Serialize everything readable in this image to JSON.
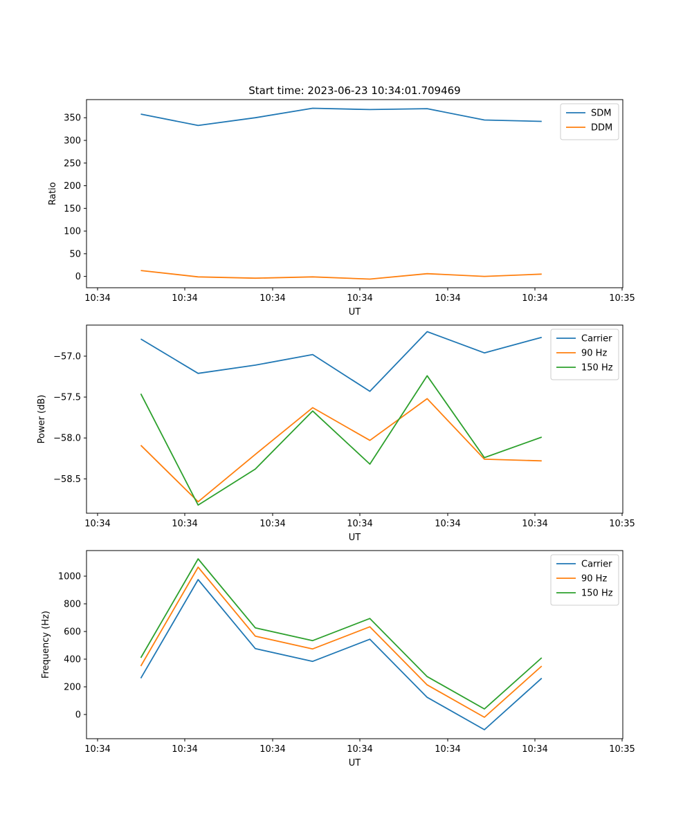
{
  "figure": {
    "title": "Start time: 2023-06-23 10:34:01.709469"
  },
  "chart_data": [
    {
      "type": "line",
      "title": "Start time: 2023-06-23 10:34:01.709469",
      "xlabel": "UT",
      "ylabel": "Ratio",
      "xticks": [
        "10:34",
        "10:34",
        "10:34",
        "10:34",
        "10:34",
        "10:34",
        "10:35"
      ],
      "yticks": [
        0,
        50,
        100,
        150,
        200,
        250,
        300,
        350
      ],
      "ylim": [
        -25,
        390
      ],
      "legend_position": "upper right",
      "grid": false,
      "series": [
        {
          "name": "SDM",
          "color": "#1f77b4",
          "values": [
            358,
            333,
            350,
            371,
            368,
            370,
            345,
            342
          ]
        },
        {
          "name": "DDM",
          "color": "#ff7f0e",
          "values": [
            13,
            -1,
            -4,
            -1,
            -6,
            6,
            0,
            5
          ]
        }
      ]
    },
    {
      "type": "line",
      "xlabel": "UT",
      "ylabel": "Power (dB)",
      "xticks": [
        "10:34",
        "10:34",
        "10:34",
        "10:34",
        "10:34",
        "10:34",
        "10:35"
      ],
      "yticks": [
        -57.0,
        -57.5,
        -58.0,
        -58.5
      ],
      "ytick_labels": [
        "−57.0",
        "−57.5",
        "−58.0",
        "−58.5"
      ],
      "ylim": [
        -58.92,
        -56.62
      ],
      "legend_position": "upper right",
      "grid": false,
      "series": [
        {
          "name": "Carrier",
          "color": "#1f77b4",
          "values": [
            -56.79,
            -57.21,
            -57.11,
            -56.98,
            -57.43,
            -56.7,
            -56.96,
            -56.77
          ]
        },
        {
          "name": "90 Hz",
          "color": "#ff7f0e",
          "values": [
            -58.09,
            -58.78,
            -58.2,
            -57.63,
            -58.03,
            -57.52,
            -58.26,
            -58.28
          ]
        },
        {
          "name": "150 Hz",
          "color": "#2ca02c",
          "values": [
            -57.46,
            -58.82,
            -58.38,
            -57.67,
            -58.32,
            -57.24,
            -58.24,
            -57.99
          ]
        }
      ]
    },
    {
      "type": "line",
      "xlabel": "UT",
      "ylabel": "Frequency (Hz)",
      "xticks": [
        "10:34",
        "10:34",
        "10:34",
        "10:34",
        "10:34",
        "10:34",
        "10:35"
      ],
      "yticks": [
        0,
        200,
        400,
        600,
        800,
        1000
      ],
      "ylim": [
        -175,
        1185
      ],
      "legend_position": "upper right",
      "grid": false,
      "series": [
        {
          "name": "Carrier",
          "color": "#1f77b4",
          "values": [
            262,
            975,
            476,
            384,
            544,
            124,
            -110,
            262
          ]
        },
        {
          "name": "90 Hz",
          "color": "#ff7f0e",
          "values": [
            350,
            1065,
            566,
            474,
            634,
            214,
            -20,
            350
          ]
        },
        {
          "name": "150 Hz",
          "color": "#2ca02c",
          "values": [
            410,
            1125,
            626,
            534,
            694,
            274,
            40,
            410
          ]
        }
      ]
    }
  ]
}
